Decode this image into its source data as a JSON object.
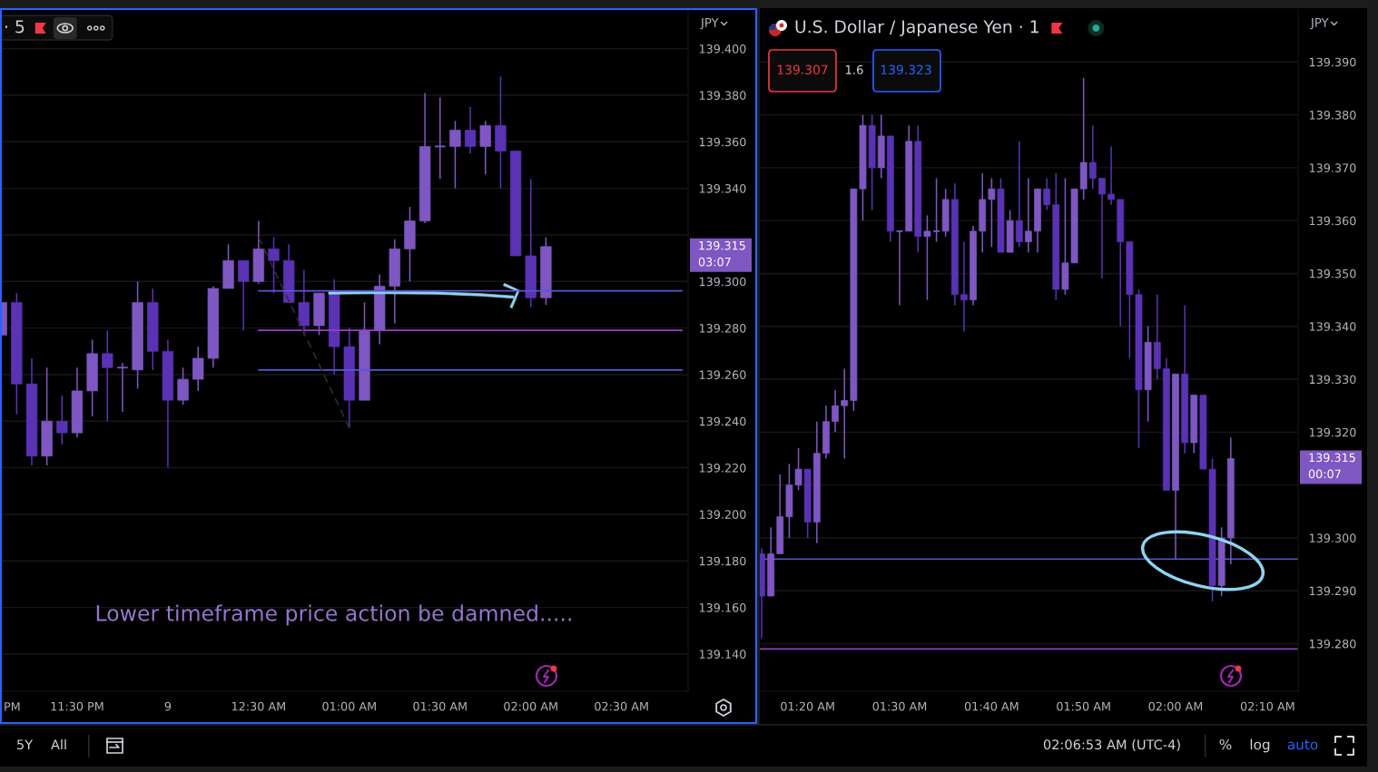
{
  "chart_data": [
    {
      "type": "candlestick",
      "title": "· 5",
      "ylabel": "JPY",
      "categories": [
        null,
        null,
        null,
        null,
        null,
        "11:30 PM",
        null,
        null,
        null,
        null,
        null,
        "9",
        null,
        null,
        null,
        null,
        null,
        "12:30 AM",
        null,
        null,
        null,
        null,
        null,
        "01:00 AM",
        null,
        null,
        null,
        null,
        null,
        "01:30 AM",
        null,
        null,
        null,
        null,
        null,
        "02:00 AM",
        null,
        null,
        null,
        null,
        null,
        "02:30 AM",
        null,
        null,
        null,
        null
      ],
      "ohlc": [
        [
          139.277,
          139.291,
          139.277,
          139.291
        ],
        [
          139.291,
          139.295,
          139.243,
          139.256
        ],
        [
          139.256,
          139.267,
          139.221,
          139.225
        ],
        [
          139.225,
          139.263,
          139.221,
          139.24
        ],
        [
          139.24,
          139.251,
          139.23,
          139.235
        ],
        [
          139.235,
          139.263,
          139.233,
          139.253
        ],
        [
          139.253,
          139.275,
          139.242,
          139.269
        ],
        [
          139.269,
          139.279,
          139.24,
          139.263
        ],
        [
          139.263,
          139.265,
          139.244,
          139.263
        ],
        [
          139.262,
          139.3,
          139.254,
          139.291
        ],
        [
          139.291,
          139.297,
          139.262,
          139.27
        ],
        [
          139.27,
          139.275,
          139.22,
          139.249
        ],
        [
          139.249,
          139.263,
          139.247,
          139.258
        ],
        [
          139.258,
          139.272,
          139.253,
          139.267
        ],
        [
          139.267,
          139.298,
          139.263,
          139.297
        ],
        [
          139.297,
          139.316,
          139.297,
          139.309
        ],
        [
          139.309,
          139.309,
          139.279,
          139.3
        ],
        [
          139.3,
          139.326,
          139.299,
          139.314
        ],
        [
          139.314,
          139.319,
          139.295,
          139.309
        ],
        [
          139.309,
          139.316,
          139.291,
          139.291
        ],
        [
          139.291,
          139.305,
          139.277,
          139.281
        ],
        [
          139.281,
          139.295,
          139.277,
          139.295
        ],
        [
          139.295,
          139.301,
          139.26,
          139.272
        ],
        [
          139.272,
          139.28,
          139.237,
          139.249
        ],
        [
          139.249,
          139.291,
          139.249,
          139.279
        ],
        [
          139.279,
          139.303,
          139.273,
          139.298
        ],
        [
          139.298,
          139.318,
          139.282,
          139.314
        ],
        [
          139.314,
          139.332,
          139.3,
          139.326
        ],
        [
          139.326,
          139.381,
          139.325,
          139.358
        ],
        [
          139.358,
          139.379,
          139.344,
          139.358
        ],
        [
          139.358,
          139.369,
          139.34,
          139.365
        ],
        [
          139.365,
          139.375,
          139.355,
          139.358
        ],
        [
          139.358,
          139.369,
          139.346,
          139.367
        ],
        [
          139.367,
          139.388,
          139.34,
          139.356
        ],
        [
          139.356,
          139.356,
          139.311,
          139.311
        ],
        [
          139.311,
          139.344,
          139.289,
          139.293
        ],
        [
          139.293,
          139.319,
          139.29,
          139.315
        ],
        null,
        null,
        null,
        null,
        null,
        null,
        null,
        null,
        null
      ],
      "colors": [
        "#7e57c2",
        "#5a32b4",
        "#5a32b4",
        "#7e57c2",
        "#5a32b4",
        "#7e57c2",
        "#7e57c2",
        "#5a32b4",
        "#7e57c2",
        "#7e57c2",
        "#5a32b4",
        "#5a32b4",
        "#7e57c2",
        "#7e57c2",
        "#7e57c2",
        "#7e57c2",
        "#5a32b4",
        "#7e57c2",
        "#5a32b4",
        "#5a32b4",
        "#5a32b4",
        "#7e57c2",
        "#5a32b4",
        "#5a32b4",
        "#7e57c2",
        "#7e57c2",
        "#7e57c2",
        "#7e57c2",
        "#7e57c2",
        "#7e57c2",
        "#7e57c2",
        "#5a32b4",
        "#7e57c2",
        "#5a32b4",
        "#5a32b4",
        "#5a32b4",
        "#7e57c2",
        null,
        null,
        null,
        null,
        null,
        null,
        null,
        null,
        null
      ],
      "series": [
        {
          "type": "line",
          "color": "#5856d6",
          "values": [
            null,
            null,
            null,
            null,
            null,
            null,
            null,
            null,
            null,
            null,
            null,
            null,
            null,
            null,
            null,
            null,
            null,
            139.296,
            139.296,
            139.296,
            139.296,
            139.296,
            139.296,
            139.296,
            139.296,
            139.296,
            139.296,
            139.296,
            139.296,
            139.296,
            139.296,
            139.296,
            139.296,
            139.296,
            139.296,
            139.296,
            139.296,
            139.296,
            139.296,
            139.296,
            139.296,
            139.296,
            139.296,
            139.296,
            139.296,
            139.296
          ]
        },
        {
          "type": "line",
          "color": "#8e44c4",
          "values": [
            null,
            null,
            null,
            null,
            null,
            null,
            null,
            null,
            null,
            null,
            null,
            null,
            null,
            null,
            null,
            null,
            null,
            139.279,
            139.279,
            139.279,
            139.279,
            139.279,
            139.279,
            139.279,
            139.279,
            139.279,
            139.279,
            139.279,
            139.279,
            139.279,
            139.279,
            139.279,
            139.279,
            139.279,
            139.279,
            139.279,
            139.279,
            139.279,
            139.279,
            139.279,
            139.279,
            139.279,
            139.279,
            139.279,
            139.279,
            139.279
          ]
        },
        {
          "type": "line",
          "color": "#5856d6",
          "values": [
            null,
            null,
            null,
            null,
            null,
            null,
            null,
            null,
            null,
            null,
            null,
            null,
            null,
            null,
            null,
            null,
            null,
            139.262,
            139.262,
            139.262,
            139.262,
            139.262,
            139.262,
            139.262,
            139.262,
            139.262,
            139.262,
            139.262,
            139.262,
            139.262,
            139.262,
            139.262,
            139.262,
            139.262,
            139.262,
            139.262,
            139.262,
            139.262,
            139.262,
            139.262,
            139.262,
            139.262,
            139.262,
            139.262,
            139.262,
            139.262
          ]
        },
        {
          "type": "line",
          "color": "#2e2e2e",
          "line_style": "dashed",
          "values": [
            null,
            null,
            null,
            null,
            null,
            null,
            null,
            null,
            null,
            null,
            null,
            null,
            null,
            null,
            null,
            null,
            null,
            139.319,
            null,
            null,
            null,
            null,
            null,
            139.237,
            null,
            null,
            null,
            null,
            null,
            null,
            null,
            null,
            null,
            null,
            null,
            null,
            null,
            null,
            null,
            null,
            null,
            null,
            null,
            null,
            null,
            null
          ]
        }
      ],
      "ylim": [
        139.124,
        139.417
      ],
      "yticks": [
        {
          "value": 139.4,
          "label": "139.400"
        },
        {
          "value": 139.38,
          "label": "139.380"
        },
        {
          "value": 139.36,
          "label": "139.360"
        },
        {
          "value": 139.34,
          "label": "139.340"
        },
        {
          "value": 139.32,
          "label": null
        },
        {
          "value": 139.3,
          "label": "139.300"
        },
        {
          "value": 139.28,
          "label": "139.280"
        },
        {
          "value": 139.26,
          "label": "139.260"
        },
        {
          "value": 139.24,
          "label": "139.240"
        },
        {
          "value": 139.22,
          "label": "139.220"
        },
        {
          "value": 139.2,
          "label": "139.200"
        },
        {
          "value": 139.18,
          "label": "139.180"
        },
        {
          "value": 139.16,
          "label": "139.160"
        },
        {
          "value": 139.14,
          "label": "139.140"
        }
      ],
      "grid": "y",
      "annotations": [
        "PM",
        "139.315",
        "03:07",
        "Lower timeframe price action be damned.....",
        "5Y",
        "All"
      ]
    },
    {
      "type": "candlestick",
      "title": "U.S. Dollar / Japanese Yen · 1",
      "ylabel": "JPY",
      "x": [
        1.25,
        1.2667,
        1.2833,
        1.3,
        1.3167,
        1.3333,
        1.35,
        1.3667,
        1.3833,
        1.4,
        1.4167,
        1.4333,
        1.45,
        1.4667,
        1.4833,
        1.5,
        1.5167,
        1.5333,
        1.55,
        1.5667,
        1.5833,
        1.6,
        1.6167,
        1.6333,
        1.65,
        1.6667,
        1.6833,
        1.7,
        1.7167,
        1.7333,
        1.75,
        1.7667,
        1.7833,
        1.8,
        1.8167,
        1.8333,
        1.85,
        1.8667,
        1.8833,
        1.9,
        1.9167,
        1.9333,
        1.95,
        1.9667,
        1.9833,
        2,
        2.0167,
        2.0333,
        2.05,
        2.0667,
        2.0833,
        2.1
      ],
      "ohlc": [
        [
          139.297,
          139.298,
          139.281,
          139.289
        ],
        [
          139.289,
          139.302,
          139.289,
          139.297
        ],
        [
          139.297,
          139.312,
          139.297,
          139.304
        ],
        [
          139.304,
          139.314,
          139.3,
          139.31
        ],
        [
          139.31,
          139.317,
          139.309,
          139.313
        ],
        [
          139.313,
          139.313,
          139.3,
          139.303
        ],
        [
          139.303,
          139.322,
          139.299,
          139.316
        ],
        [
          139.316,
          139.325,
          139.315,
          139.322
        ],
        [
          139.322,
          139.328,
          139.32,
          139.325
        ],
        [
          139.325,
          139.332,
          139.315,
          139.326
        ],
        [
          139.326,
          139.366,
          139.324,
          139.366
        ],
        [
          139.366,
          139.38,
          139.36,
          139.378
        ],
        [
          139.378,
          139.38,
          139.362,
          139.37
        ],
        [
          139.37,
          139.38,
          139.368,
          139.376
        ],
        [
          139.376,
          139.376,
          139.356,
          139.358
        ],
        [
          139.358,
          139.358,
          139.344,
          139.358
        ],
        [
          139.358,
          139.378,
          139.358,
          139.375
        ],
        [
          139.375,
          139.378,
          139.354,
          139.357
        ],
        [
          139.357,
          139.361,
          139.345,
          139.358
        ],
        [
          139.358,
          139.368,
          139.356,
          139.358
        ],
        [
          139.358,
          139.366,
          139.357,
          139.364
        ],
        [
          139.364,
          139.367,
          139.344,
          139.346
        ],
        [
          139.346,
          139.356,
          139.339,
          139.345
        ],
        [
          139.345,
          139.359,
          139.344,
          139.358
        ],
        [
          139.358,
          139.369,
          139.354,
          139.364
        ],
        [
          139.364,
          139.368,
          139.355,
          139.366
        ],
        [
          139.366,
          139.368,
          139.354,
          139.354
        ],
        [
          139.354,
          139.362,
          139.354,
          139.36
        ],
        [
          139.36,
          139.375,
          139.355,
          139.356
        ],
        [
          139.356,
          139.368,
          139.354,
          139.358
        ],
        [
          139.358,
          139.366,
          139.354,
          139.366
        ],
        [
          139.366,
          139.368,
          139.362,
          139.363
        ],
        [
          139.363,
          139.369,
          139.345,
          139.347
        ],
        [
          139.347,
          139.368,
          139.346,
          139.352
        ],
        [
          139.352,
          139.366,
          139.352,
          139.366
        ],
        [
          139.366,
          139.387,
          139.364,
          139.371
        ],
        [
          139.371,
          139.378,
          139.366,
          139.368
        ],
        [
          139.368,
          139.368,
          139.349,
          139.365
        ],
        [
          139.365,
          139.374,
          139.363,
          139.364
        ],
        [
          139.364,
          139.364,
          139.34,
          139.356
        ],
        [
          139.356,
          139.356,
          139.334,
          139.346
        ],
        [
          139.346,
          139.347,
          139.317,
          139.328
        ],
        [
          139.328,
          139.34,
          139.322,
          139.337
        ],
        [
          139.337,
          139.346,
          139.33,
          139.332
        ],
        [
          139.332,
          139.334,
          139.309,
          139.309
        ],
        [
          139.309,
          139.331,
          139.296,
          139.331
        ],
        [
          139.331,
          139.344,
          139.316,
          139.318
        ],
        [
          139.318,
          139.327,
          139.316,
          139.327
        ],
        [
          139.327,
          139.327,
          139.313,
          139.313
        ],
        [
          139.313,
          139.315,
          139.288,
          139.291
        ],
        [
          139.291,
          139.302,
          139.289,
          139.3
        ],
        [
          139.3,
          139.319,
          139.295,
          139.315
        ]
      ],
      "colors": [
        "#5a32b4",
        "#7e57c2",
        "#7e57c2",
        "#7e57c2",
        "#7e57c2",
        "#5a32b4",
        "#7e57c2",
        "#7e57c2",
        "#7e57c2",
        "#7e57c2",
        "#7e57c2",
        "#7e57c2",
        "#5a32b4",
        "#7e57c2",
        "#5a32b4",
        "#7e57c2",
        "#7e57c2",
        "#5a32b4",
        "#7e57c2",
        "#7e57c2",
        "#7e57c2",
        "#5a32b4",
        "#5a32b4",
        "#7e57c2",
        "#7e57c2",
        "#7e57c2",
        "#5a32b4",
        "#7e57c2",
        "#5a32b4",
        "#7e57c2",
        "#7e57c2",
        "#5a32b4",
        "#5a32b4",
        "#7e57c2",
        "#7e57c2",
        "#7e57c2",
        "#5a32b4",
        "#5a32b4",
        "#5a32b4",
        "#5a32b4",
        "#5a32b4",
        "#5a32b4",
        "#7e57c2",
        "#5a32b4",
        "#5a32b4",
        "#7e57c2",
        "#5a32b4",
        "#7e57c2",
        "#5a32b4",
        "#5a32b4",
        "#7e57c2",
        "#7e57c2"
      ],
      "ref_lines": [
        {
          "axis": "y",
          "value": 139.296,
          "color": "#5856d6"
        },
        {
          "axis": "y",
          "value": 139.279,
          "color": "#8e44c4"
        }
      ],
      "xlim": [
        1.245,
        2.222
      ],
      "ylim": [
        139.271,
        139.4
      ],
      "xticks": [
        {
          "value": 1.3333,
          "label": "01:20 AM"
        },
        {
          "value": 1.5,
          "label": "01:30 AM"
        },
        {
          "value": 1.6667,
          "label": "01:40 AM"
        },
        {
          "value": 1.8333,
          "label": "01:50 AM"
        },
        {
          "value": 2,
          "label": "02:00 AM"
        },
        {
          "value": 2.1667,
          "label": "02:10 AM"
        }
      ],
      "yticks": [
        {
          "value": 139.39,
          "label": "139.390"
        },
        {
          "value": 139.38,
          "label": "139.380"
        },
        {
          "value": 139.37,
          "label": "139.370"
        },
        {
          "value": 139.36,
          "label": "139.360"
        },
        {
          "value": 139.35,
          "label": "139.350"
        },
        {
          "value": 139.34,
          "label": "139.340"
        },
        {
          "value": 139.33,
          "label": "139.330"
        },
        {
          "value": 139.32,
          "label": "139.320"
        },
        {
          "value": 139.31,
          "label": null
        },
        {
          "value": 139.3,
          "label": "139.300"
        },
        {
          "value": 139.29,
          "label": "139.290"
        },
        {
          "value": 139.28,
          "label": "139.280"
        }
      ],
      "grid": "y",
      "annotations": [
        "139.307",
        "1.6",
        "139.323",
        "139.315",
        "00:07",
        "02:06:53 AM (UTC-4)",
        "%",
        "log",
        "auto"
      ]
    }
  ]
}
